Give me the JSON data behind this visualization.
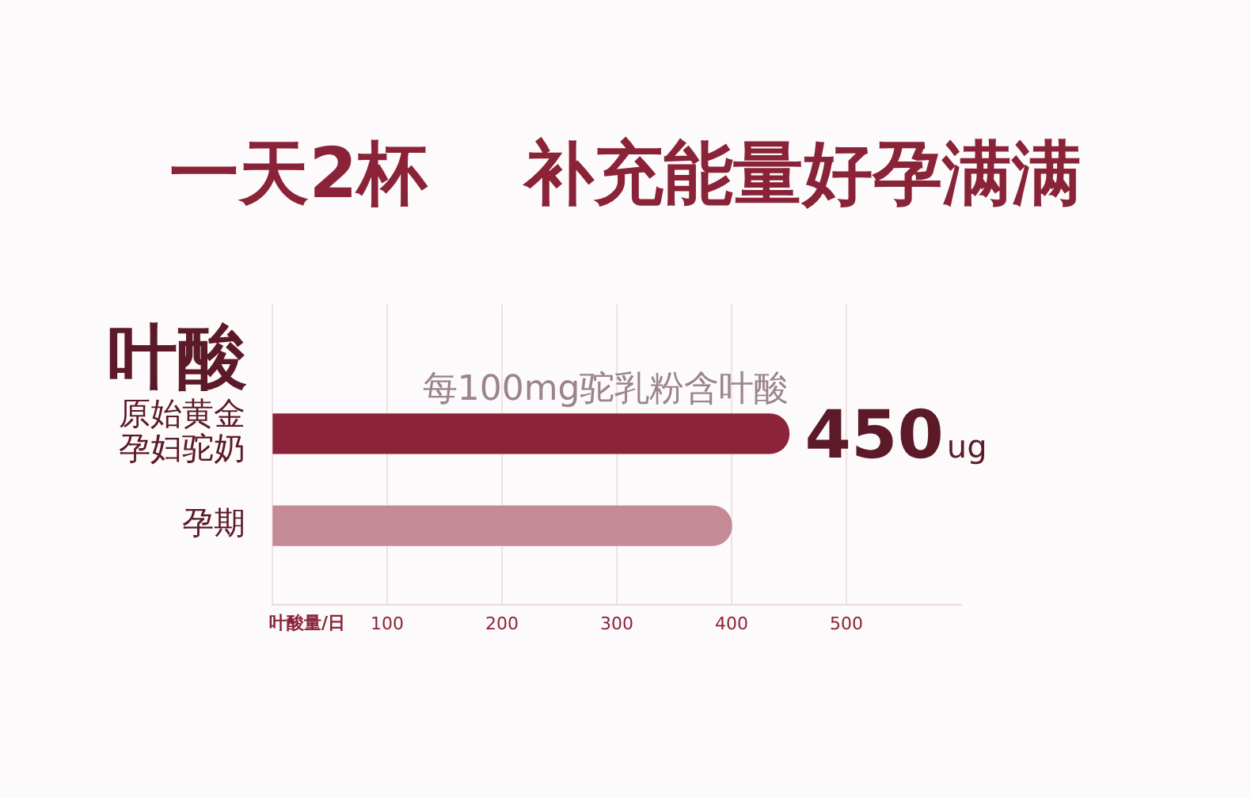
{
  "chart_data": {
    "type": "bar",
    "orientation": "horizontal",
    "title": "一天2杯    补充能量好孕满满",
    "ylabel": "叶酸",
    "xlabel": "叶酸量/日",
    "categories": [
      "原始黄金孕妇驼奶",
      "孕期"
    ],
    "values": [
      450,
      400
    ],
    "colors": [
      "#8c2339",
      "#c48a96"
    ],
    "value_labels": [
      "450ug",
      null
    ],
    "xlim": [
      0,
      600
    ],
    "xticks": [
      {
        "value": 0,
        "label": null
      },
      100,
      200,
      300,
      400,
      500
    ],
    "grid": "x",
    "annotations": [
      "每100mg驼乳粉含叶酸"
    ]
  }
}
